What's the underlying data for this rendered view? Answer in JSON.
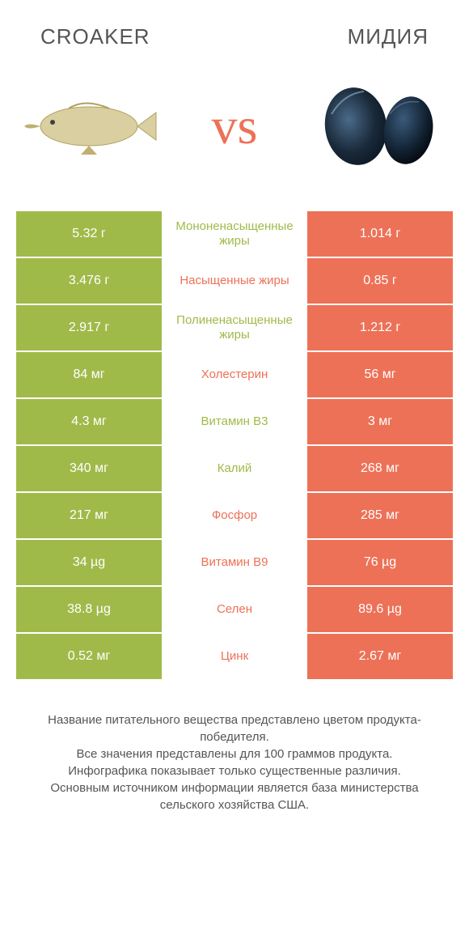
{
  "header": {
    "left_title": "CROAKER",
    "right_title": "МИДИЯ"
  },
  "vs_label": "vs",
  "colors": {
    "left_bg": "#a0ba4a",
    "right_bg": "#ed7157",
    "left_text": "#a0ba4a",
    "right_text": "#ed7157",
    "row_gap": "#ffffff"
  },
  "rows": [
    {
      "left": "5.32 г",
      "mid": "Мононенасыщенные жиры",
      "right": "1.014 г",
      "winner": "left"
    },
    {
      "left": "3.476 г",
      "mid": "Насыщенные жиры",
      "right": "0.85 г",
      "winner": "right"
    },
    {
      "left": "2.917 г",
      "mid": "Полиненасыщенные жиры",
      "right": "1.212 г",
      "winner": "left"
    },
    {
      "left": "84 мг",
      "mid": "Холестерин",
      "right": "56 мг",
      "winner": "right"
    },
    {
      "left": "4.3 мг",
      "mid": "Витамин B3",
      "right": "3 мг",
      "winner": "left"
    },
    {
      "left": "340 мг",
      "mid": "Калий",
      "right": "268 мг",
      "winner": "left"
    },
    {
      "left": "217 мг",
      "mid": "Фосфор",
      "right": "285 мг",
      "winner": "right"
    },
    {
      "left": "34 µg",
      "mid": "Витамин B9",
      "right": "76 µg",
      "winner": "right"
    },
    {
      "left": "38.8 µg",
      "mid": "Селен",
      "right": "89.6 µg",
      "winner": "right"
    },
    {
      "left": "0.52 мг",
      "mid": "Цинк",
      "right": "2.67 мг",
      "winner": "right"
    }
  ],
  "footnote": "Название питательного вещества представлено цветом продукта-победителя.\nВсе значения представлены для 100 граммов продукта.\nИнфографика показывает только существенные различия.\nОсновным источником информации является база министерства сельского хозяйства США."
}
